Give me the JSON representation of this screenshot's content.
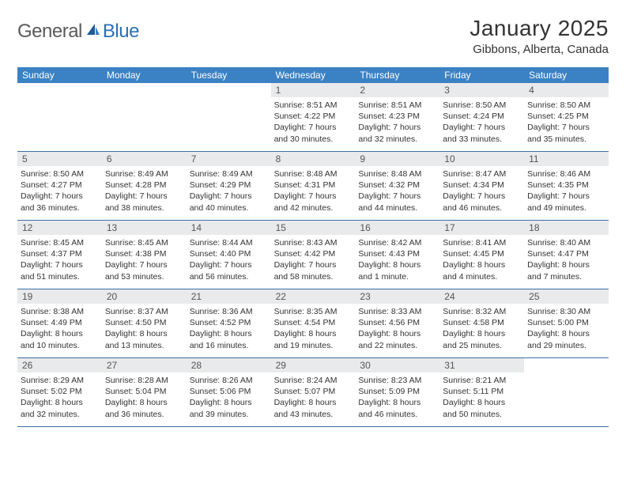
{
  "logo": {
    "general": "General",
    "blue": "Blue"
  },
  "title": "January 2025",
  "location": "Gibbons, Alberta, Canada",
  "colors": {
    "header_bg": "#3b82c4",
    "header_text": "#ffffff",
    "daynum_bg": "#e9eaeb",
    "border": "#3b6fa5",
    "text": "#333333",
    "logo_gray": "#5a5a5a",
    "logo_blue": "#2a6fb5"
  },
  "day_names": [
    "Sunday",
    "Monday",
    "Tuesday",
    "Wednesday",
    "Thursday",
    "Friday",
    "Saturday"
  ],
  "weeks": [
    [
      {
        "n": "",
        "sr": "",
        "ss": "",
        "dl1": "",
        "dl2": ""
      },
      {
        "n": "",
        "sr": "",
        "ss": "",
        "dl1": "",
        "dl2": ""
      },
      {
        "n": "",
        "sr": "",
        "ss": "",
        "dl1": "",
        "dl2": ""
      },
      {
        "n": "1",
        "sr": "Sunrise: 8:51 AM",
        "ss": "Sunset: 4:22 PM",
        "dl1": "Daylight: 7 hours",
        "dl2": "and 30 minutes."
      },
      {
        "n": "2",
        "sr": "Sunrise: 8:51 AM",
        "ss": "Sunset: 4:23 PM",
        "dl1": "Daylight: 7 hours",
        "dl2": "and 32 minutes."
      },
      {
        "n": "3",
        "sr": "Sunrise: 8:50 AM",
        "ss": "Sunset: 4:24 PM",
        "dl1": "Daylight: 7 hours",
        "dl2": "and 33 minutes."
      },
      {
        "n": "4",
        "sr": "Sunrise: 8:50 AM",
        "ss": "Sunset: 4:25 PM",
        "dl1": "Daylight: 7 hours",
        "dl2": "and 35 minutes."
      }
    ],
    [
      {
        "n": "5",
        "sr": "Sunrise: 8:50 AM",
        "ss": "Sunset: 4:27 PM",
        "dl1": "Daylight: 7 hours",
        "dl2": "and 36 minutes."
      },
      {
        "n": "6",
        "sr": "Sunrise: 8:49 AM",
        "ss": "Sunset: 4:28 PM",
        "dl1": "Daylight: 7 hours",
        "dl2": "and 38 minutes."
      },
      {
        "n": "7",
        "sr": "Sunrise: 8:49 AM",
        "ss": "Sunset: 4:29 PM",
        "dl1": "Daylight: 7 hours",
        "dl2": "and 40 minutes."
      },
      {
        "n": "8",
        "sr": "Sunrise: 8:48 AM",
        "ss": "Sunset: 4:31 PM",
        "dl1": "Daylight: 7 hours",
        "dl2": "and 42 minutes."
      },
      {
        "n": "9",
        "sr": "Sunrise: 8:48 AM",
        "ss": "Sunset: 4:32 PM",
        "dl1": "Daylight: 7 hours",
        "dl2": "and 44 minutes."
      },
      {
        "n": "10",
        "sr": "Sunrise: 8:47 AM",
        "ss": "Sunset: 4:34 PM",
        "dl1": "Daylight: 7 hours",
        "dl2": "and 46 minutes."
      },
      {
        "n": "11",
        "sr": "Sunrise: 8:46 AM",
        "ss": "Sunset: 4:35 PM",
        "dl1": "Daylight: 7 hours",
        "dl2": "and 49 minutes."
      }
    ],
    [
      {
        "n": "12",
        "sr": "Sunrise: 8:45 AM",
        "ss": "Sunset: 4:37 PM",
        "dl1": "Daylight: 7 hours",
        "dl2": "and 51 minutes."
      },
      {
        "n": "13",
        "sr": "Sunrise: 8:45 AM",
        "ss": "Sunset: 4:38 PM",
        "dl1": "Daylight: 7 hours",
        "dl2": "and 53 minutes."
      },
      {
        "n": "14",
        "sr": "Sunrise: 8:44 AM",
        "ss": "Sunset: 4:40 PM",
        "dl1": "Daylight: 7 hours",
        "dl2": "and 56 minutes."
      },
      {
        "n": "15",
        "sr": "Sunrise: 8:43 AM",
        "ss": "Sunset: 4:42 PM",
        "dl1": "Daylight: 7 hours",
        "dl2": "and 58 minutes."
      },
      {
        "n": "16",
        "sr": "Sunrise: 8:42 AM",
        "ss": "Sunset: 4:43 PM",
        "dl1": "Daylight: 8 hours",
        "dl2": "and 1 minute."
      },
      {
        "n": "17",
        "sr": "Sunrise: 8:41 AM",
        "ss": "Sunset: 4:45 PM",
        "dl1": "Daylight: 8 hours",
        "dl2": "and 4 minutes."
      },
      {
        "n": "18",
        "sr": "Sunrise: 8:40 AM",
        "ss": "Sunset: 4:47 PM",
        "dl1": "Daylight: 8 hours",
        "dl2": "and 7 minutes."
      }
    ],
    [
      {
        "n": "19",
        "sr": "Sunrise: 8:38 AM",
        "ss": "Sunset: 4:49 PM",
        "dl1": "Daylight: 8 hours",
        "dl2": "and 10 minutes."
      },
      {
        "n": "20",
        "sr": "Sunrise: 8:37 AM",
        "ss": "Sunset: 4:50 PM",
        "dl1": "Daylight: 8 hours",
        "dl2": "and 13 minutes."
      },
      {
        "n": "21",
        "sr": "Sunrise: 8:36 AM",
        "ss": "Sunset: 4:52 PM",
        "dl1": "Daylight: 8 hours",
        "dl2": "and 16 minutes."
      },
      {
        "n": "22",
        "sr": "Sunrise: 8:35 AM",
        "ss": "Sunset: 4:54 PM",
        "dl1": "Daylight: 8 hours",
        "dl2": "and 19 minutes."
      },
      {
        "n": "23",
        "sr": "Sunrise: 8:33 AM",
        "ss": "Sunset: 4:56 PM",
        "dl1": "Daylight: 8 hours",
        "dl2": "and 22 minutes."
      },
      {
        "n": "24",
        "sr": "Sunrise: 8:32 AM",
        "ss": "Sunset: 4:58 PM",
        "dl1": "Daylight: 8 hours",
        "dl2": "and 25 minutes."
      },
      {
        "n": "25",
        "sr": "Sunrise: 8:30 AM",
        "ss": "Sunset: 5:00 PM",
        "dl1": "Daylight: 8 hours",
        "dl2": "and 29 minutes."
      }
    ],
    [
      {
        "n": "26",
        "sr": "Sunrise: 8:29 AM",
        "ss": "Sunset: 5:02 PM",
        "dl1": "Daylight: 8 hours",
        "dl2": "and 32 minutes."
      },
      {
        "n": "27",
        "sr": "Sunrise: 8:28 AM",
        "ss": "Sunset: 5:04 PM",
        "dl1": "Daylight: 8 hours",
        "dl2": "and 36 minutes."
      },
      {
        "n": "28",
        "sr": "Sunrise: 8:26 AM",
        "ss": "Sunset: 5:06 PM",
        "dl1": "Daylight: 8 hours",
        "dl2": "and 39 minutes."
      },
      {
        "n": "29",
        "sr": "Sunrise: 8:24 AM",
        "ss": "Sunset: 5:07 PM",
        "dl1": "Daylight: 8 hours",
        "dl2": "and 43 minutes."
      },
      {
        "n": "30",
        "sr": "Sunrise: 8:23 AM",
        "ss": "Sunset: 5:09 PM",
        "dl1": "Daylight: 8 hours",
        "dl2": "and 46 minutes."
      },
      {
        "n": "31",
        "sr": "Sunrise: 8:21 AM",
        "ss": "Sunset: 5:11 PM",
        "dl1": "Daylight: 8 hours",
        "dl2": "and 50 minutes."
      },
      {
        "n": "",
        "sr": "",
        "ss": "",
        "dl1": "",
        "dl2": ""
      }
    ]
  ]
}
